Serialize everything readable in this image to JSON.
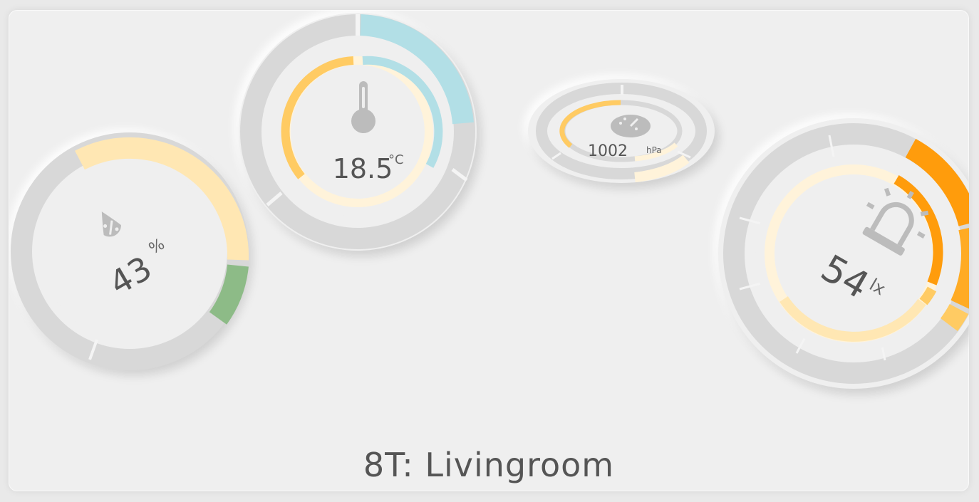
{
  "card": {
    "title": "8T: Livingroom"
  },
  "gauges": {
    "humidity": {
      "value": "43",
      "unit": "%",
      "icon": "humidity-drop-icon",
      "level_percent": 43
    },
    "temperature": {
      "value": "18.5",
      "unit": "°C",
      "icon": "thermometer-icon"
    },
    "pressure": {
      "value": "1002",
      "unit": "hPa",
      "icon": "speedometer-icon"
    },
    "illuminance": {
      "value": "54",
      "unit": "lx",
      "icon": "alarm-light-icon"
    }
  },
  "colors": {
    "track": "#d8d8d8",
    "yellow_light": "#ffe7b3",
    "yellow_pale": "#fff3da",
    "yellow": "#ffcb63",
    "green": "#8dbb87",
    "blue": "#b2dfe6",
    "orange": "#ff9c0c",
    "orange_light": "#ffab24",
    "text": "#555555",
    "icon": "#bcbcbc"
  }
}
